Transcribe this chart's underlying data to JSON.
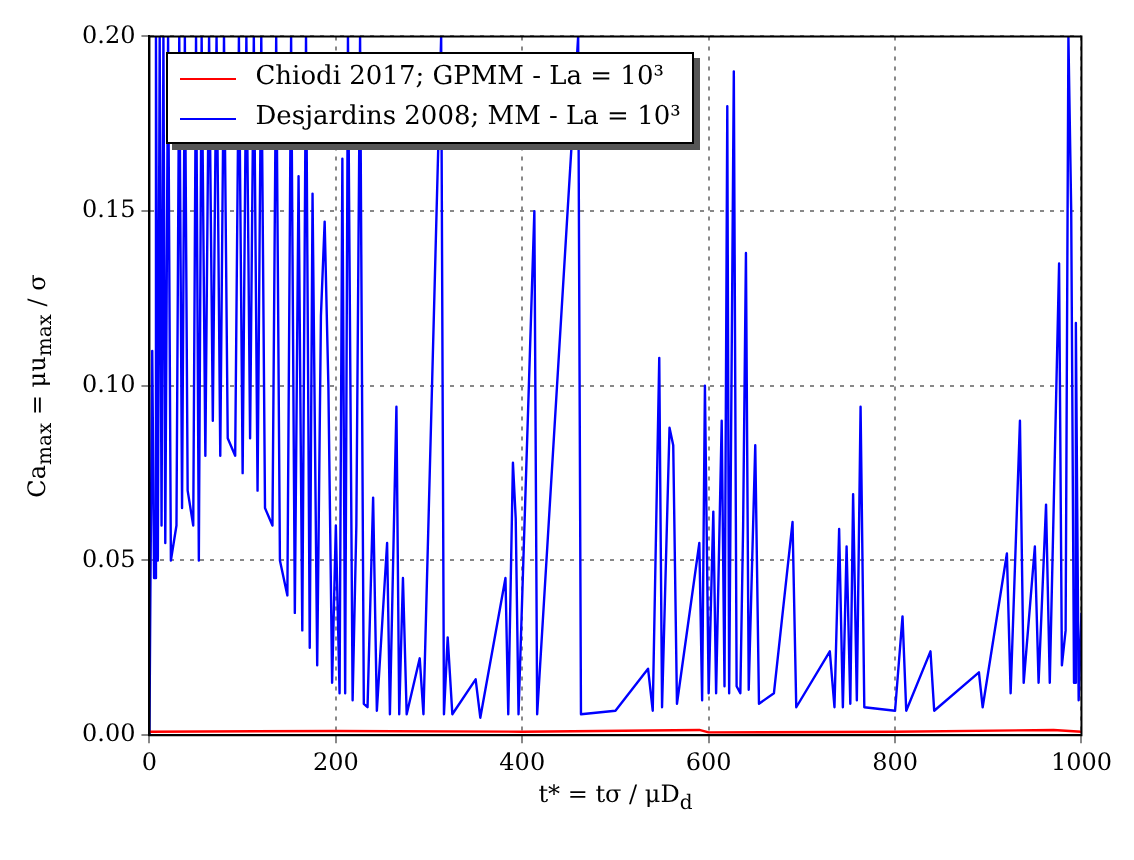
{
  "chart_data": {
    "type": "line",
    "xlabel": "t* = tσ / μD$_{d}$",
    "ylabel": "Ca$_{max}$ = μu$_{max}$ / σ",
    "xlim": [
      0,
      1000
    ],
    "xticks": [
      0,
      200,
      400,
      600,
      800,
      1000
    ],
    "ylim": [
      0,
      0.2
    ],
    "yticks": [
      {
        "value": 0,
        "label": "0.00"
      },
      {
        "value": 0.05,
        "label": "0.05"
      },
      {
        "value": 0.1,
        "label": "0.10"
      },
      {
        "value": 0.15,
        "label": "0.15"
      },
      {
        "value": 0.2,
        "label": "0.20"
      }
    ],
    "grid": true,
    "legend": "top left",
    "marker": "none",
    "line_style": "solid",
    "series": [
      {
        "name": "Chiodi 2017; GPMM - La = 10³",
        "color": "#ff0000",
        "x": [
          0,
          200,
          400,
          590,
          600,
          800,
          970,
          1000
        ],
        "values": [
          0.001,
          0.0012,
          0.001,
          0.0015,
          0.0008,
          0.001,
          0.0015,
          0.001
        ]
      },
      {
        "name": "Desjardins 2008; MM - La = 10³",
        "color": "#0000ff",
        "x": [
          0,
          1,
          3,
          5,
          7,
          9,
          11,
          13,
          15,
          17,
          20,
          23,
          26,
          29,
          32,
          35,
          38,
          41,
          44,
          47,
          50,
          53,
          56,
          60,
          64,
          68,
          72,
          76,
          80,
          84,
          88,
          92,
          96,
          100,
          104,
          108,
          112,
          116,
          120,
          124,
          128,
          132,
          136,
          140,
          144,
          148,
          152,
          156,
          160,
          164,
          168,
          172,
          175,
          180,
          184,
          188,
          192,
          196,
          200,
          204,
          207,
          210,
          213,
          218,
          222,
          226,
          230,
          234,
          240,
          244,
          255,
          258,
          265,
          268,
          272,
          276,
          290,
          294,
          313,
          316,
          320,
          325,
          350,
          355,
          382,
          385,
          390,
          393,
          396,
          413,
          416,
          460,
          463,
          500,
          535,
          540,
          547,
          550,
          558,
          562,
          566,
          590,
          593,
          596,
          600,
          605,
          608,
          614,
          617,
          620,
          622,
          627,
          630,
          634,
          637,
          640,
          643,
          650,
          654,
          670,
          690,
          694,
          730,
          735,
          740,
          744,
          748,
          752,
          755,
          759,
          763,
          767,
          800,
          808,
          812,
          838,
          842,
          890,
          894,
          920,
          924,
          934,
          938,
          950,
          954,
          962,
          966,
          976,
          979,
          983,
          986,
          989,
          992,
          994,
          997,
          1000
        ],
        "values": [
          0.0,
          0.04,
          0.11,
          0.045,
          0.2,
          0.05,
          0.2,
          0.06,
          0.2,
          0.055,
          0.2,
          0.05,
          null,
          0.06,
          0.2,
          0.065,
          0.2,
          0.07,
          null,
          0.06,
          0.2,
          0.05,
          0.2,
          0.08,
          0.2,
          0.09,
          0.2,
          0.08,
          0.2,
          0.085,
          null,
          0.08,
          0.2,
          0.075,
          0.2,
          0.085,
          0.2,
          0.07,
          0.2,
          0.065,
          null,
          0.06,
          0.2,
          0.05,
          null,
          0.04,
          0.2,
          0.035,
          0.16,
          0.03,
          0.2,
          0.025,
          0.155,
          0.02,
          0.12,
          0.147,
          0.1,
          0.015,
          0.06,
          0.012,
          0.165,
          0.012,
          0.2,
          0.01,
          0.06,
          0.2,
          0.009,
          0.008,
          0.068,
          0.007,
          0.055,
          0.006,
          0.094,
          0.006,
          0.045,
          0.006,
          0.022,
          0.006,
          0.2,
          0.006,
          0.028,
          0.006,
          0.016,
          0.005,
          0.045,
          0.006,
          0.078,
          0.062,
          0.006,
          0.15,
          0.006,
          0.2,
          0.006,
          0.007,
          0.019,
          0.007,
          0.108,
          0.008,
          0.088,
          0.083,
          0.009,
          0.055,
          0.01,
          0.1,
          0.012,
          0.064,
          0.012,
          0.09,
          0.014,
          0.18,
          0.012,
          0.19,
          0.014,
          0.012,
          0.06,
          0.138,
          0.013,
          0.083,
          0.009,
          0.012,
          0.061,
          0.008,
          0.024,
          0.008,
          0.059,
          0.008,
          0.054,
          0.009,
          0.069,
          0.01,
          0.094,
          0.008,
          0.007,
          0.034,
          0.007,
          0.024,
          0.007,
          0.018,
          0.008,
          0.052,
          0.012,
          0.09,
          0.015,
          0.054,
          0.015,
          0.066,
          0.015,
          0.135,
          0.02,
          0.03,
          0.2,
          0.15,
          0.015,
          0.118,
          0.01,
          0.035
        ]
      }
    ]
  }
}
